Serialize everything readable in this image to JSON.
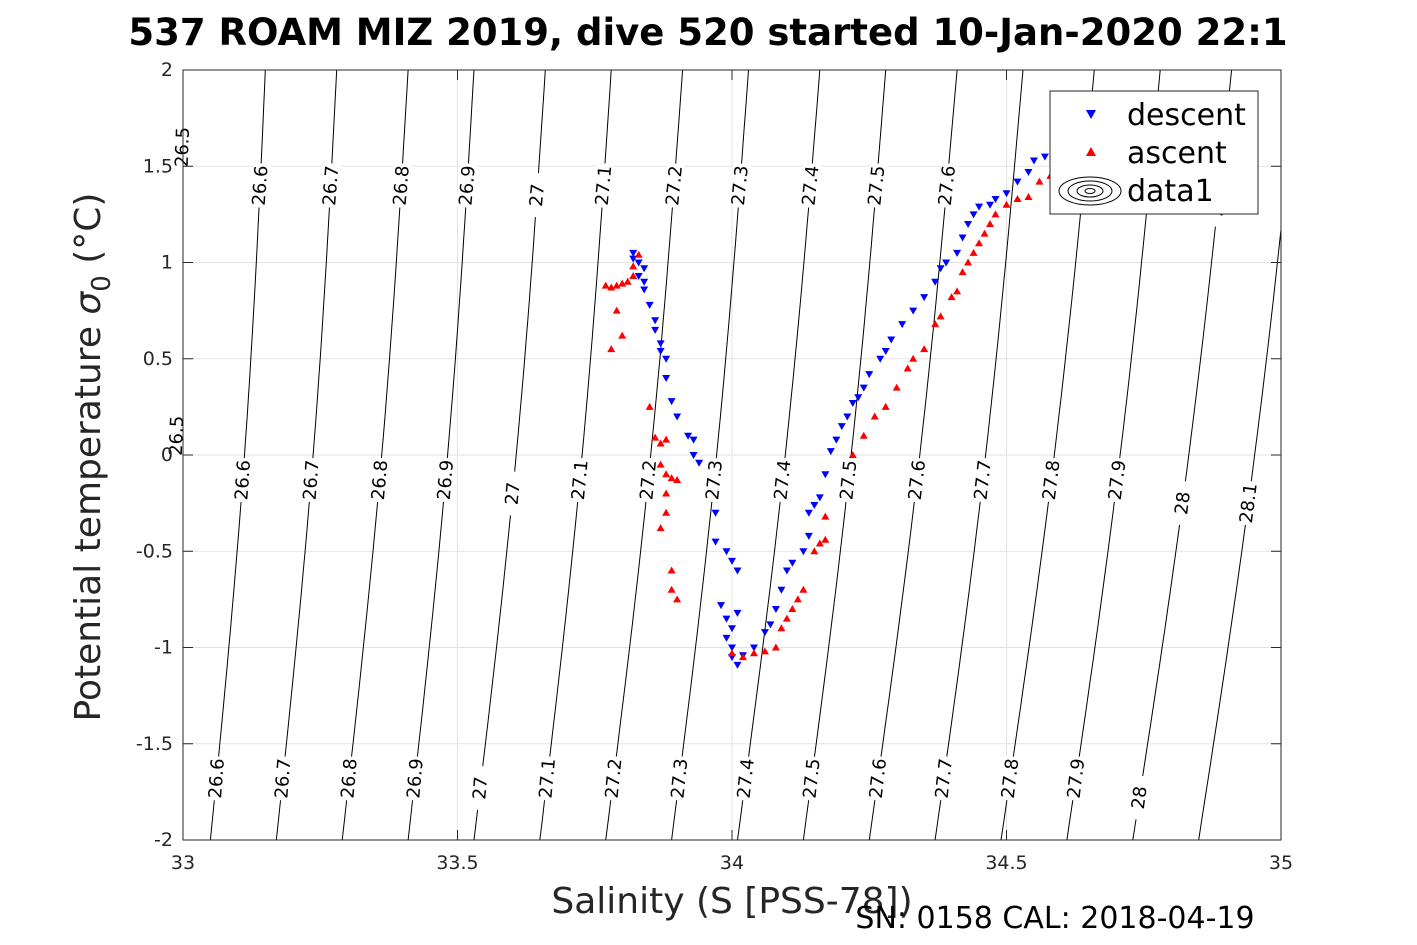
{
  "chart_data": {
    "type": "scatter",
    "title": "537 ROAM MIZ 2019, dive 520 started 10-Jan-2020 22:1",
    "xlabel": "Salinity (S [PSS-78])",
    "ylabel_main": "Potential temperature ",
    "ylabel_sigma": "σ",
    "ylabel_sub": "0",
    "ylabel_unit": " (°C)",
    "footer": "SN: 0158  CAL: 2018-04-19",
    "xlim": [
      33,
      35
    ],
    "ylim": [
      -2,
      2
    ],
    "xticks": [
      33,
      33.5,
      34,
      34.5,
      35
    ],
    "xtick_labels": [
      "33",
      "33.5",
      "34",
      "34.5",
      "35"
    ],
    "yticks": [
      -2,
      -1.5,
      -1,
      -0.5,
      0,
      0.5,
      1,
      1.5,
      2
    ],
    "ytick_labels": [
      "-2",
      "-1.5",
      "-1",
      "-0.5",
      "0",
      "0.5",
      "1",
      "1.5",
      "2"
    ],
    "grid": true,
    "legend_position": "top-right",
    "legend": [
      "descent",
      "ascent",
      "data1"
    ],
    "colors": {
      "descent": "#0000ff",
      "ascent": "#ff0000",
      "contour": "#000000",
      "grid": "#e3e3e3"
    },
    "series": [
      {
        "name": "descent",
        "marker": "down-triangle",
        "points": [
          [
            33.82,
            1.05
          ],
          [
            33.82,
            1.02
          ],
          [
            33.83,
            1.0
          ],
          [
            33.84,
            0.97
          ],
          [
            33.83,
            0.93
          ],
          [
            33.84,
            0.9
          ],
          [
            33.84,
            0.86
          ],
          [
            33.85,
            0.78
          ],
          [
            33.86,
            0.7
          ],
          [
            33.86,
            0.65
          ],
          [
            33.87,
            0.58
          ],
          [
            33.87,
            0.54
          ],
          [
            33.88,
            0.5
          ],
          [
            33.88,
            0.4
          ],
          [
            33.89,
            0.28
          ],
          [
            33.9,
            0.2
          ],
          [
            33.92,
            0.1
          ],
          [
            33.93,
            0.08
          ],
          [
            33.93,
            0.0
          ],
          [
            33.94,
            -0.04
          ],
          [
            33.97,
            -0.3
          ],
          [
            33.97,
            -0.45
          ],
          [
            33.99,
            -0.5
          ],
          [
            34.0,
            -0.55
          ],
          [
            34.01,
            -0.6
          ],
          [
            33.98,
            -0.78
          ],
          [
            33.99,
            -0.85
          ],
          [
            34.0,
            -0.9
          ],
          [
            34.01,
            -0.82
          ],
          [
            33.99,
            -0.95
          ],
          [
            34.0,
            -1.0
          ],
          [
            34.0,
            -1.05
          ],
          [
            34.01,
            -1.09
          ],
          [
            34.02,
            -1.04
          ],
          [
            34.04,
            -1.0
          ],
          [
            34.06,
            -0.92
          ],
          [
            34.07,
            -0.88
          ],
          [
            34.08,
            -0.8
          ],
          [
            34.09,
            -0.7
          ],
          [
            34.1,
            -0.6
          ],
          [
            34.11,
            -0.56
          ],
          [
            34.13,
            -0.5
          ],
          [
            34.14,
            -0.42
          ],
          [
            34.14,
            -0.3
          ],
          [
            34.15,
            -0.26
          ],
          [
            34.16,
            -0.22
          ],
          [
            34.17,
            -0.1
          ],
          [
            34.18,
            0.02
          ],
          [
            34.19,
            0.08
          ],
          [
            34.2,
            0.15
          ],
          [
            34.21,
            0.2
          ],
          [
            34.22,
            0.27
          ],
          [
            34.23,
            0.3
          ],
          [
            34.24,
            0.35
          ],
          [
            34.25,
            0.42
          ],
          [
            34.27,
            0.5
          ],
          [
            34.28,
            0.54
          ],
          [
            34.29,
            0.6
          ],
          [
            34.31,
            0.68
          ],
          [
            34.33,
            0.75
          ],
          [
            34.35,
            0.82
          ],
          [
            34.37,
            0.9
          ],
          [
            34.38,
            0.97
          ],
          [
            34.39,
            1.0
          ],
          [
            34.41,
            1.05
          ],
          [
            34.42,
            1.13
          ],
          [
            34.43,
            1.2
          ],
          [
            34.44,
            1.25
          ],
          [
            34.45,
            1.29
          ],
          [
            34.47,
            1.3
          ],
          [
            34.48,
            1.33
          ],
          [
            34.5,
            1.36
          ],
          [
            34.52,
            1.42
          ],
          [
            34.54,
            1.47
          ],
          [
            34.55,
            1.53
          ],
          [
            34.57,
            1.55
          ]
        ]
      },
      {
        "name": "ascent",
        "marker": "up-triangle",
        "points": [
          [
            33.77,
            0.88
          ],
          [
            33.78,
            0.87
          ],
          [
            33.79,
            0.88
          ],
          [
            33.8,
            0.89
          ],
          [
            33.81,
            0.9
          ],
          [
            33.82,
            0.93
          ],
          [
            33.82,
            0.98
          ],
          [
            33.83,
            1.04
          ],
          [
            33.79,
            0.75
          ],
          [
            33.8,
            0.62
          ],
          [
            33.78,
            0.55
          ],
          [
            33.85,
            0.25
          ],
          [
            33.86,
            0.09
          ],
          [
            33.87,
            0.06
          ],
          [
            33.88,
            0.08
          ],
          [
            33.87,
            -0.05
          ],
          [
            33.88,
            -0.1
          ],
          [
            33.89,
            -0.12
          ],
          [
            33.9,
            -0.13
          ],
          [
            33.88,
            -0.2
          ],
          [
            33.88,
            -0.3
          ],
          [
            33.87,
            -0.38
          ],
          [
            33.89,
            -0.6
          ],
          [
            33.89,
            -0.7
          ],
          [
            33.9,
            -0.75
          ],
          [
            34.0,
            -1.03
          ],
          [
            34.02,
            -1.05
          ],
          [
            34.04,
            -1.03
          ],
          [
            34.06,
            -1.02
          ],
          [
            34.08,
            -1.0
          ],
          [
            34.09,
            -0.9
          ],
          [
            34.1,
            -0.85
          ],
          [
            34.11,
            -0.8
          ],
          [
            34.12,
            -0.75
          ],
          [
            34.13,
            -0.7
          ],
          [
            34.15,
            -0.5
          ],
          [
            34.16,
            -0.46
          ],
          [
            34.17,
            -0.44
          ],
          [
            34.17,
            -0.32
          ],
          [
            34.22,
            0.0
          ],
          [
            34.24,
            0.1
          ],
          [
            34.26,
            0.2
          ],
          [
            34.28,
            0.25
          ],
          [
            34.3,
            0.35
          ],
          [
            34.32,
            0.45
          ],
          [
            34.33,
            0.5
          ],
          [
            34.35,
            0.55
          ],
          [
            34.37,
            0.68
          ],
          [
            34.38,
            0.72
          ],
          [
            34.4,
            0.82
          ],
          [
            34.41,
            0.85
          ],
          [
            34.42,
            0.95
          ],
          [
            34.43,
            1.0
          ],
          [
            34.44,
            1.05
          ],
          [
            34.45,
            1.1
          ],
          [
            34.46,
            1.15
          ],
          [
            34.47,
            1.2
          ],
          [
            34.48,
            1.25
          ],
          [
            34.5,
            1.3
          ],
          [
            34.52,
            1.33
          ],
          [
            34.54,
            1.34
          ],
          [
            34.56,
            1.42
          ],
          [
            34.58,
            1.45
          ],
          [
            34.6,
            1.52
          ]
        ]
      }
    ],
    "isopycnals": [
      {
        "label": "26.5",
        "s_at_2": 33.0,
        "s_at_m2": 32.95
      },
      {
        "label": "26.6",
        "s_at_2": 33.15,
        "s_at_m2": 33.05
      },
      {
        "label": "26.7",
        "s_at_2": 33.28,
        "s_at_m2": 33.17
      },
      {
        "label": "26.8",
        "s_at_2": 33.41,
        "s_at_m2": 33.29
      },
      {
        "label": "26.9",
        "s_at_2": 33.53,
        "s_at_m2": 33.41
      },
      {
        "label": "27",
        "s_at_2": 33.66,
        "s_at_m2": 33.53
      },
      {
        "label": "27.1",
        "s_at_2": 33.78,
        "s_at_m2": 33.65
      },
      {
        "label": "27.2",
        "s_at_2": 33.91,
        "s_at_m2": 33.77
      },
      {
        "label": "27.3",
        "s_at_2": 34.03,
        "s_at_m2": 33.89
      },
      {
        "label": "27.4",
        "s_at_2": 34.16,
        "s_at_m2": 34.01
      },
      {
        "label": "27.5",
        "s_at_2": 34.28,
        "s_at_m2": 34.13
      },
      {
        "label": "27.6",
        "s_at_2": 34.41,
        "s_at_m2": 34.25
      },
      {
        "label": "27.7",
        "s_at_2": 34.53,
        "s_at_m2": 34.37
      },
      {
        "label": "27.8",
        "s_at_2": 34.66,
        "s_at_m2": 34.49
      },
      {
        "label": "27.9",
        "s_at_2": 34.78,
        "s_at_m2": 34.61
      },
      {
        "label": "28",
        "s_at_2": 34.91,
        "s_at_m2": 34.73
      },
      {
        "label": "28.1",
        "s_at_2": 35.03,
        "s_at_m2": 34.85
      }
    ],
    "contour_labels_top": [
      {
        "label": "26.5",
        "t": 1.6
      },
      {
        "label": "26.6",
        "t": 1.4
      },
      {
        "label": "26.7",
        "t": 1.4
      },
      {
        "label": "26.8",
        "t": 1.4
      },
      {
        "label": "26.9",
        "t": 1.4
      },
      {
        "label": "27",
        "t": 1.35
      },
      {
        "label": "27.1",
        "t": 1.4
      },
      {
        "label": "27.2",
        "t": 1.4
      },
      {
        "label": "27.3",
        "t": 1.4
      },
      {
        "label": "27.4",
        "t": 1.4
      },
      {
        "label": "27.5",
        "t": 1.4
      },
      {
        "label": "27.6",
        "t": 1.4
      },
      {
        "label": "28",
        "t": 1.3
      }
    ],
    "contour_labels_mid": [
      {
        "label": "26.5",
        "t": 0.1
      },
      {
        "label": "26.6",
        "t": -0.13
      },
      {
        "label": "26.7",
        "t": -0.13
      },
      {
        "label": "26.8",
        "t": -0.13
      },
      {
        "label": "26.9",
        "t": -0.13
      },
      {
        "label": "27",
        "t": -0.2
      },
      {
        "label": "27.1",
        "t": -0.13
      },
      {
        "label": "27.2",
        "t": -0.13
      },
      {
        "label": "27.3",
        "t": -0.13
      },
      {
        "label": "27.4",
        "t": -0.13
      },
      {
        "label": "27.5",
        "t": -0.13
      },
      {
        "label": "27.6",
        "t": -0.13
      },
      {
        "label": "27.7",
        "t": -0.13
      },
      {
        "label": "27.8",
        "t": -0.13
      },
      {
        "label": "27.9",
        "t": -0.13
      },
      {
        "label": "28",
        "t": -0.25
      },
      {
        "label": "28.1",
        "t": -0.25
      }
    ],
    "contour_labels_bottom": [
      {
        "label": "26.6",
        "t": -1.68
      },
      {
        "label": "26.7",
        "t": -1.68
      },
      {
        "label": "26.8",
        "t": -1.68
      },
      {
        "label": "26.9",
        "t": -1.68
      },
      {
        "label": "27",
        "t": -1.73
      },
      {
        "label": "27.1",
        "t": -1.68
      },
      {
        "label": "27.2",
        "t": -1.68
      },
      {
        "label": "27.3",
        "t": -1.68
      },
      {
        "label": "27.4",
        "t": -1.68
      },
      {
        "label": "27.5",
        "t": -1.68
      },
      {
        "label": "27.6",
        "t": -1.68
      },
      {
        "label": "27.7",
        "t": -1.68
      },
      {
        "label": "27.8",
        "t": -1.68
      },
      {
        "label": "27.9",
        "t": -1.68
      },
      {
        "label": "28",
        "t": -1.78
      }
    ]
  }
}
